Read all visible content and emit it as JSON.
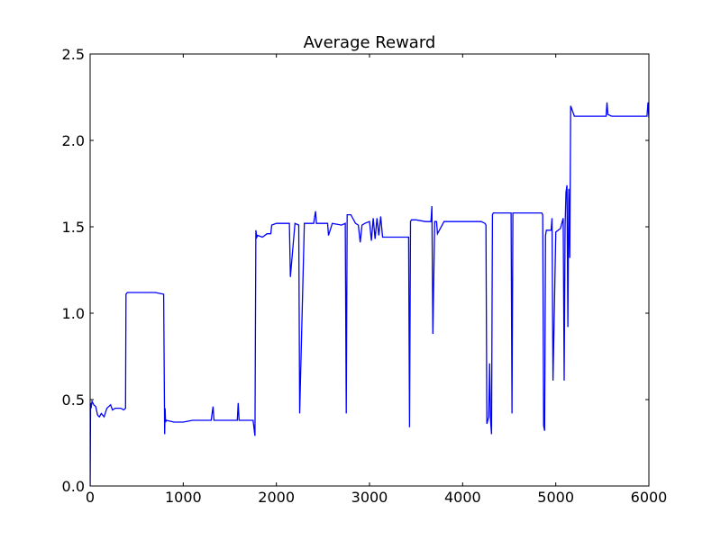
{
  "chart_data": {
    "type": "line",
    "title": "Average Reward",
    "xlabel": "",
    "ylabel": "",
    "xlim": [
      0,
      6000
    ],
    "ylim": [
      0,
      2.5
    ],
    "xticks": [
      0,
      1000,
      2000,
      3000,
      4000,
      5000,
      6000
    ],
    "xtick_labels": [
      "0",
      "1000",
      "2000",
      "3000",
      "4000",
      "5000",
      "6000"
    ],
    "yticks": [
      0,
      0.5,
      1,
      1.5,
      2,
      2.5
    ],
    "ytick_labels": [
      "0.0",
      "0.5",
      "1.0",
      "1.5",
      "2.0",
      "2.5"
    ],
    "grid": false,
    "legend": "none",
    "colors": {
      "series": "#0000ff",
      "axes": "#000000",
      "background": "#ffffff"
    },
    "series": [
      {
        "x": [
          0,
          5,
          10,
          20,
          40,
          60,
          80,
          100,
          120,
          150,
          180,
          200,
          220,
          240,
          270,
          300,
          330,
          360,
          380,
          385,
          400,
          500,
          600,
          700,
          790,
          800,
          805,
          810,
          820,
          900,
          1000,
          1100,
          1200,
          1300,
          1320,
          1330,
          1400,
          1500,
          1580,
          1590,
          1600,
          1700,
          1750,
          1770,
          1780,
          1790,
          1800,
          1850,
          1900,
          1940,
          1950,
          2000,
          2100,
          2140,
          2150,
          2200,
          2240,
          2250,
          2300,
          2400,
          2420,
          2430,
          2500,
          2550,
          2560,
          2600,
          2700,
          2740,
          2750,
          2760,
          2800,
          2850,
          2880,
          2900,
          2920,
          2950,
          3000,
          3020,
          3040,
          3060,
          3080,
          3100,
          3120,
          3140,
          3200,
          3300,
          3400,
          3420,
          3430,
          3440,
          3450,
          3500,
          3600,
          3660,
          3670,
          3680,
          3700,
          3720,
          3730,
          3800,
          3900,
          4000,
          4100,
          4200,
          4240,
          4250,
          4260,
          4280,
          4290,
          4300,
          4310,
          4320,
          4330,
          4350,
          4400,
          4500,
          4520,
          4530,
          4540,
          4600,
          4700,
          4800,
          4850,
          4860,
          4870,
          4880,
          4890,
          4900,
          4950,
          4960,
          4970,
          5000,
          5050,
          5080,
          5090,
          5100,
          5110,
          5120,
          5130,
          5140,
          5150,
          5160,
          5200,
          5300,
          5400,
          5500,
          5540,
          5550,
          5560,
          5600,
          5700,
          5800,
          5900,
          5980,
          5990,
          6000
        ],
        "y": [
          0.0,
          0.48,
          0.45,
          0.49,
          0.47,
          0.46,
          0.41,
          0.4,
          0.42,
          0.4,
          0.45,
          0.46,
          0.47,
          0.44,
          0.45,
          0.45,
          0.45,
          0.44,
          0.45,
          1.11,
          1.12,
          1.12,
          1.12,
          1.12,
          1.11,
          0.3,
          0.45,
          0.37,
          0.38,
          0.37,
          0.37,
          0.38,
          0.38,
          0.38,
          0.46,
          0.38,
          0.38,
          0.38,
          0.38,
          0.48,
          0.38,
          0.38,
          0.38,
          0.29,
          1.48,
          1.44,
          1.45,
          1.44,
          1.46,
          1.46,
          1.51,
          1.52,
          1.52,
          1.52,
          1.21,
          1.52,
          1.51,
          0.42,
          1.52,
          1.52,
          1.59,
          1.52,
          1.52,
          1.52,
          1.45,
          1.52,
          1.51,
          1.52,
          0.42,
          1.57,
          1.57,
          1.52,
          1.51,
          1.41,
          1.51,
          1.52,
          1.53,
          1.42,
          1.55,
          1.43,
          1.55,
          1.45,
          1.56,
          1.44,
          1.44,
          1.44,
          1.44,
          1.44,
          0.34,
          1.53,
          1.54,
          1.54,
          1.53,
          1.53,
          1.62,
          0.88,
          1.53,
          1.53,
          1.46,
          1.53,
          1.53,
          1.53,
          1.53,
          1.53,
          1.52,
          1.51,
          0.36,
          0.4,
          0.71,
          0.38,
          0.3,
          1.57,
          1.58,
          1.58,
          1.58,
          1.58,
          1.58,
          0.42,
          1.58,
          1.58,
          1.58,
          1.58,
          1.58,
          1.57,
          0.35,
          0.32,
          1.45,
          1.48,
          1.48,
          1.55,
          0.61,
          1.47,
          1.49,
          1.55,
          0.61,
          1.5,
          1.7,
          1.74,
          0.92,
          1.72,
          1.32,
          2.2,
          2.14,
          2.14,
          2.14,
          2.14,
          2.14,
          2.22,
          2.15,
          2.14,
          2.14,
          2.14,
          2.14,
          2.14,
          2.22,
          2.13
        ]
      }
    ]
  }
}
